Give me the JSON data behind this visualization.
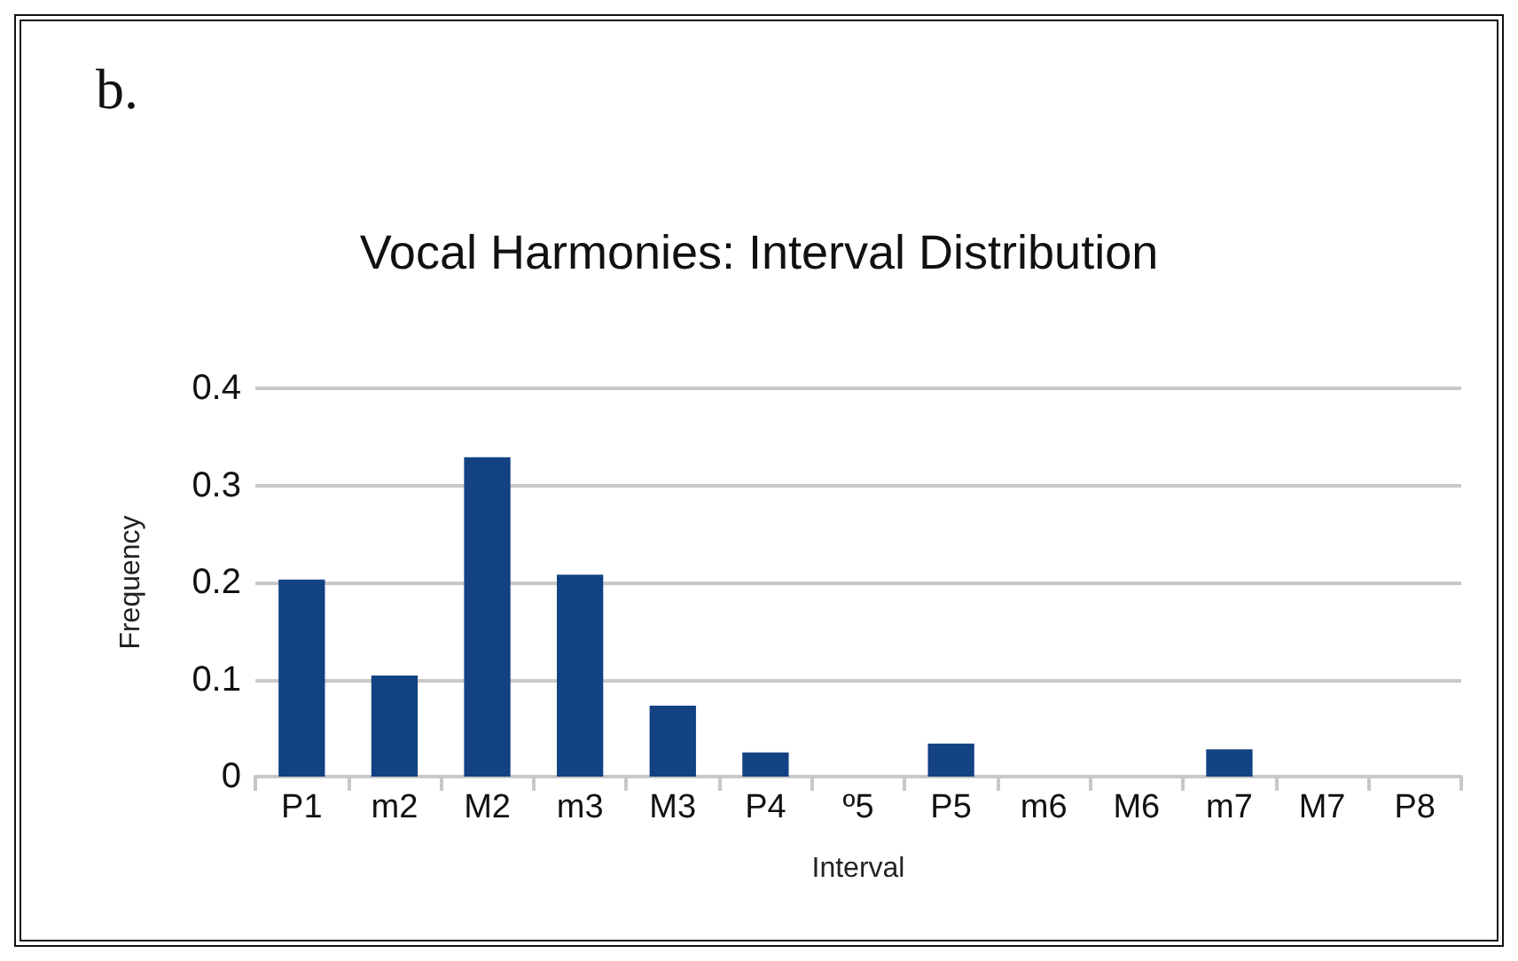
{
  "chart_data": {
    "type": "bar",
    "title": "Vocal Harmonies: Interval Distribution",
    "xlabel": "Interval",
    "ylabel": "Frequency",
    "annotations": [
      "b."
    ],
    "categories": [
      "P1",
      "m2",
      "M2",
      "m3",
      "M3",
      "P4",
      "º5",
      "P5",
      "m6",
      "M6",
      "m7",
      "M7",
      "P8"
    ],
    "values": [
      0.203,
      0.104,
      0.329,
      0.208,
      0.073,
      0.025,
      0,
      0.034,
      0,
      0,
      0.028,
      0,
      0
    ],
    "color": "#134283",
    "ylim": [
      0,
      0.4
    ],
    "yticks": [
      0,
      0.1,
      0.2,
      0.3,
      0.4
    ],
    "grid": "y"
  }
}
